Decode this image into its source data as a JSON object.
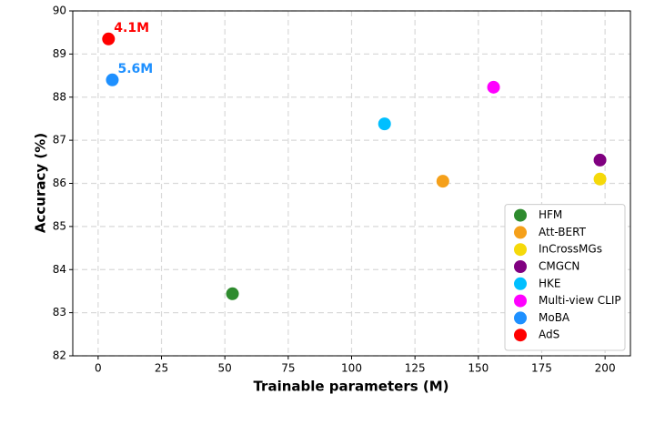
{
  "chart_data": {
    "type": "scatter",
    "xlabel": "Trainable parameters (M)",
    "ylabel": "Accuracy (%)",
    "xlim": [
      -10,
      210
    ],
    "xticks": [
      0,
      25,
      50,
      75,
      100,
      125,
      150,
      175,
      200
    ],
    "ylim": [
      82,
      90
    ],
    "yticks": [
      82,
      83,
      84,
      85,
      86,
      87,
      88,
      89,
      90
    ],
    "grid": true,
    "legend": "lower right",
    "series": [
      {
        "name": "HFM",
        "color": "#2e8b2e",
        "x": [
          53
        ],
        "values": [
          83.44
        ]
      },
      {
        "name": "Att-BERT",
        "color": "#f5a01a",
        "x": [
          136
        ],
        "values": [
          86.05
        ]
      },
      {
        "name": "InCrossMGs",
        "color": "#f5d90a",
        "x": [
          198
        ],
        "values": [
          86.1
        ]
      },
      {
        "name": "CMGCN",
        "color": "#800080",
        "x": [
          198
        ],
        "values": [
          86.54
        ]
      },
      {
        "name": "HKE",
        "color": "#00bfff",
        "x": [
          113
        ],
        "values": [
          87.38
        ]
      },
      {
        "name": "Multi-view CLIP",
        "color": "#ff00ff",
        "x": [
          156
        ],
        "values": [
          88.23
        ]
      },
      {
        "name": "MoBA",
        "color": "#1e90ff",
        "x": [
          5.6
        ],
        "values": [
          88.4
        ],
        "value_labels": [
          "5.6M"
        ]
      },
      {
        "name": "AdS",
        "color": "#ff0000",
        "x": [
          4.1
        ],
        "values": [
          89.35
        ],
        "value_labels": [
          "4.1M"
        ]
      }
    ]
  }
}
